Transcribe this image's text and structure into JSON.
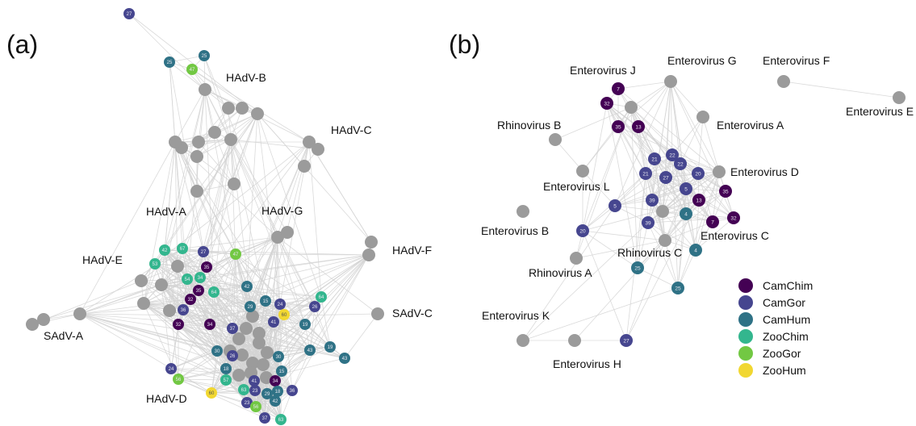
{
  "colors": {
    "edge": "#d4d4d4",
    "ref": "#9b9b9b",
    "CamChim": "#440154",
    "CamGor": "#46468f",
    "CamHum": "#2f7286",
    "ZooChim": "#33b68e",
    "ZooGor": "#72c843",
    "ZooHum": "#f1d731"
  },
  "panel_a": {
    "tag": "(a)",
    "clusters": [
      "HAdV-B",
      "HAdV-C",
      "HAdV-A",
      "HAdV-G",
      "HAdV-F",
      "HAdV-E",
      "SAdV-C",
      "SAdV-A",
      "HAdV-D"
    ],
    "nodes": [
      {
        "g": "CamGor",
        "n": "27"
      },
      {
        "g": "CamHum",
        "n": "25"
      },
      {
        "g": "CamHum",
        "n": "25"
      },
      {
        "g": "ZooGor",
        "n": "47"
      },
      {
        "g": "ZooChim",
        "n": "42"
      },
      {
        "g": "ZooChim",
        "n": "67"
      },
      {
        "g": "ZooChim",
        "n": "53"
      },
      {
        "g": "ZooChim",
        "n": "54"
      },
      {
        "g": "ZooChim",
        "n": "34"
      },
      {
        "g": "CamGor",
        "n": "27"
      },
      {
        "g": "ZooGor",
        "n": "47"
      },
      {
        "g": "CamChim",
        "n": "35"
      },
      {
        "g": "CamChim",
        "n": "35"
      },
      {
        "g": "ZooChim",
        "n": "64"
      },
      {
        "g": "CamChim",
        "n": "32"
      },
      {
        "g": "CamGor",
        "n": "36"
      },
      {
        "g": "CamChim",
        "n": "32"
      },
      {
        "g": "CamChim",
        "n": "34"
      },
      {
        "g": "CamHum",
        "n": "42"
      },
      {
        "g": "CamHum",
        "n": "29"
      },
      {
        "g": "CamHum",
        "n": "15"
      },
      {
        "g": "CamGor",
        "n": "24"
      },
      {
        "g": "ZooHum",
        "n": "60"
      },
      {
        "g": "CamGor",
        "n": "26"
      },
      {
        "g": "ZooChim",
        "n": "64"
      },
      {
        "g": "CamGor",
        "n": "41"
      },
      {
        "g": "CamHum",
        "n": "19"
      },
      {
        "g": "CamGor",
        "n": "37"
      },
      {
        "g": "CamHum",
        "n": "30"
      },
      {
        "g": "CamGor",
        "n": "26"
      },
      {
        "g": "CamHum",
        "n": "30"
      },
      {
        "g": "CamHum",
        "n": "43"
      },
      {
        "g": "CamHum",
        "n": "19"
      },
      {
        "g": "CamHum",
        "n": "43"
      },
      {
        "g": "CamHum",
        "n": "18"
      },
      {
        "g": "CamHum",
        "n": "15"
      },
      {
        "g": "CamGor",
        "n": "24"
      },
      {
        "g": "ZooGor",
        "n": "56"
      },
      {
        "g": "ZooChim",
        "n": "57"
      },
      {
        "g": "CamGor",
        "n": "41"
      },
      {
        "g": "CamChim",
        "n": "34"
      },
      {
        "g": "ZooHum",
        "n": "60"
      },
      {
        "g": "ZooChim",
        "n": "63"
      },
      {
        "g": "CamGor",
        "n": "23"
      },
      {
        "g": "CamHum",
        "n": "29"
      },
      {
        "g": "CamHum",
        "n": "18"
      },
      {
        "g": "CamGor",
        "n": "36"
      },
      {
        "g": "CamHum",
        "n": "42"
      },
      {
        "g": "CamGor",
        "n": "23"
      },
      {
        "g": "ZooGor",
        "n": "56"
      },
      {
        "g": "CamGor",
        "n": "37"
      },
      {
        "g": "ZooChim",
        "n": "63"
      }
    ]
  },
  "panel_b": {
    "tag": "(b)",
    "clusters": [
      "Enterovirus J",
      "Enterovirus G",
      "Enterovirus F",
      "Enterovirus E",
      "Rhinovirus B",
      "Enterovirus A",
      "Enterovirus D",
      "Enterovirus L",
      "Enterovirus B",
      "Enterovirus C",
      "Rhinovirus C",
      "Rhinovirus A",
      "Enterovirus K",
      "Enterovirus H"
    ],
    "nodes": [
      {
        "g": "CamChim",
        "n": "7"
      },
      {
        "g": "CamChim",
        "n": "32"
      },
      {
        "g": "CamChim",
        "n": "35"
      },
      {
        "g": "CamChim",
        "n": "13"
      },
      {
        "g": "CamGor",
        "n": "22"
      },
      {
        "g": "CamGor",
        "n": "21"
      },
      {
        "g": "CamGor",
        "n": "22"
      },
      {
        "g": "CamGor",
        "n": "21"
      },
      {
        "g": "CamGor",
        "n": "27"
      },
      {
        "g": "CamGor",
        "n": "20"
      },
      {
        "g": "CamGor",
        "n": "5"
      },
      {
        "g": "CamChim",
        "n": "35"
      },
      {
        "g": "CamGor",
        "n": "39"
      },
      {
        "g": "CamChim",
        "n": "13"
      },
      {
        "g": "CamGor",
        "n": "5"
      },
      {
        "g": "CamHum",
        "n": "4"
      },
      {
        "g": "CamGor",
        "n": "39"
      },
      {
        "g": "CamChim",
        "n": "7"
      },
      {
        "g": "CamChim",
        "n": "32"
      },
      {
        "g": "CamGor",
        "n": "20"
      },
      {
        "g": "CamHum",
        "n": "4"
      },
      {
        "g": "CamHum",
        "n": "25"
      },
      {
        "g": "CamHum",
        "n": "25"
      },
      {
        "g": "CamGor",
        "n": "27"
      }
    ]
  },
  "legend": [
    {
      "key": "CamChim",
      "label": "CamChim"
    },
    {
      "key": "CamGor",
      "label": "CamGor"
    },
    {
      "key": "CamHum",
      "label": "CamHum"
    },
    {
      "key": "ZooChim",
      "label": "ZooChim"
    },
    {
      "key": "ZooGor",
      "label": "ZooGor"
    },
    {
      "key": "ZooHum",
      "label": "ZooHum"
    }
  ]
}
